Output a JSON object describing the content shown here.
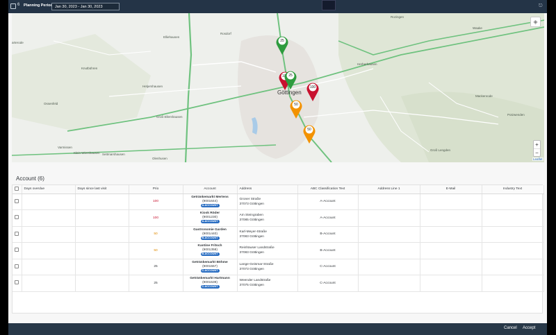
{
  "header": {
    "count": "6",
    "planning_label": "Planning Period:",
    "period_value": "Jan 30, 2023 - Jan 30, 2023"
  },
  "map": {
    "places": {
      "rosdorf_rd": "Rosdorf",
      "rozingen": "Rozingen",
      "waake": "Waake",
      "arterode": "arterode",
      "ellerhausen": "Elliehausen",
      "knutbuhren": "Knutbühren",
      "herberhausen": "Herberhausen",
      "hetjershausen": "Hetjershausen",
      "goettingen": "Göttingen",
      "mackenrode": "Mackenrode",
      "ossenfeld": "Ossenfeld",
      "gross_ellershausen": "Groß Ellershausen",
      "potzwenden": "Potzwenden",
      "varmissen": "Varmissen",
      "klein_wiershausen": "Klein Wiershausen",
      "settmarshausen": "Settmarshausen",
      "olenhusen": "Olenhusen",
      "gross_lengden": "Groß Lengden"
    },
    "pins": [
      {
        "label": "25",
        "color": "#2e9b3e"
      },
      {
        "label": "100",
        "color": "#c8102e"
      },
      {
        "label": "25",
        "color": "#2e9b3e"
      },
      {
        "label": "100",
        "color": "#c8102e"
      },
      {
        "label": "50",
        "color": "#f39200"
      },
      {
        "label": "50",
        "color": "#f39200"
      }
    ],
    "zoom_in": "+",
    "zoom_out": "−",
    "attribution": "Leaflet"
  },
  "section": {
    "title": "Account (6)"
  },
  "table": {
    "columns": [
      "Days overdue",
      "Days since last visit",
      "Prio",
      "Account",
      "Address",
      "ABC Classification Text",
      "Address Line 1",
      "E-Mail",
      "Industry Text"
    ],
    "rows": [
      {
        "prio": "100",
        "prio_color": "#c8102e",
        "name": "Getränkemarkt Mertens",
        "number": "(9001644)",
        "badge": "A-ACCOUNT",
        "street": "Groner Straße",
        "city": "37073 Göttingen",
        "abc": "A-Account"
      },
      {
        "prio": "100",
        "prio_color": "#c8102e",
        "name": "Kiosk Röder",
        "number": "(9001230)",
        "badge": "A-ACCOUNT",
        "street": "Am Steingraben",
        "city": "37085 Göttingen",
        "abc": "A-Account"
      },
      {
        "prio": "50",
        "prio_color": "#e08a00",
        "name": "Gastronomie Garden",
        "number": "(9001440)",
        "badge": "B-ACCOUNT",
        "street": "Karl-Meyer-Straße",
        "city": "37083 Göttingen",
        "abc": "B-Account"
      },
      {
        "prio": "50",
        "prio_color": "#e08a00",
        "name": "Kantine Fritsch",
        "number": "(9001358)",
        "badge": "B-ACCOUNT",
        "street": "Reinhäuser Landstraße",
        "city": "37083 Göttingen",
        "abc": "B-Account"
      },
      {
        "prio": "25",
        "prio_color": "#32363a",
        "name": "Getränkemarkt Böhme",
        "number": "(9001557)",
        "badge": "C-ACCOUNT",
        "street": "Lange-Geismar-Straße",
        "city": "37073 Göttingen",
        "abc": "C-Account"
      },
      {
        "prio": "25",
        "prio_color": "#32363a",
        "name": "Getränkemarkt Hartmann",
        "number": "(9001539)",
        "badge": "C-ACCOUNT",
        "street": "Weender Landstraße",
        "city": "37075 Göttingen",
        "abc": "C-Account"
      }
    ]
  },
  "footer": {
    "cancel": "Cancel",
    "accept": "Accept"
  }
}
